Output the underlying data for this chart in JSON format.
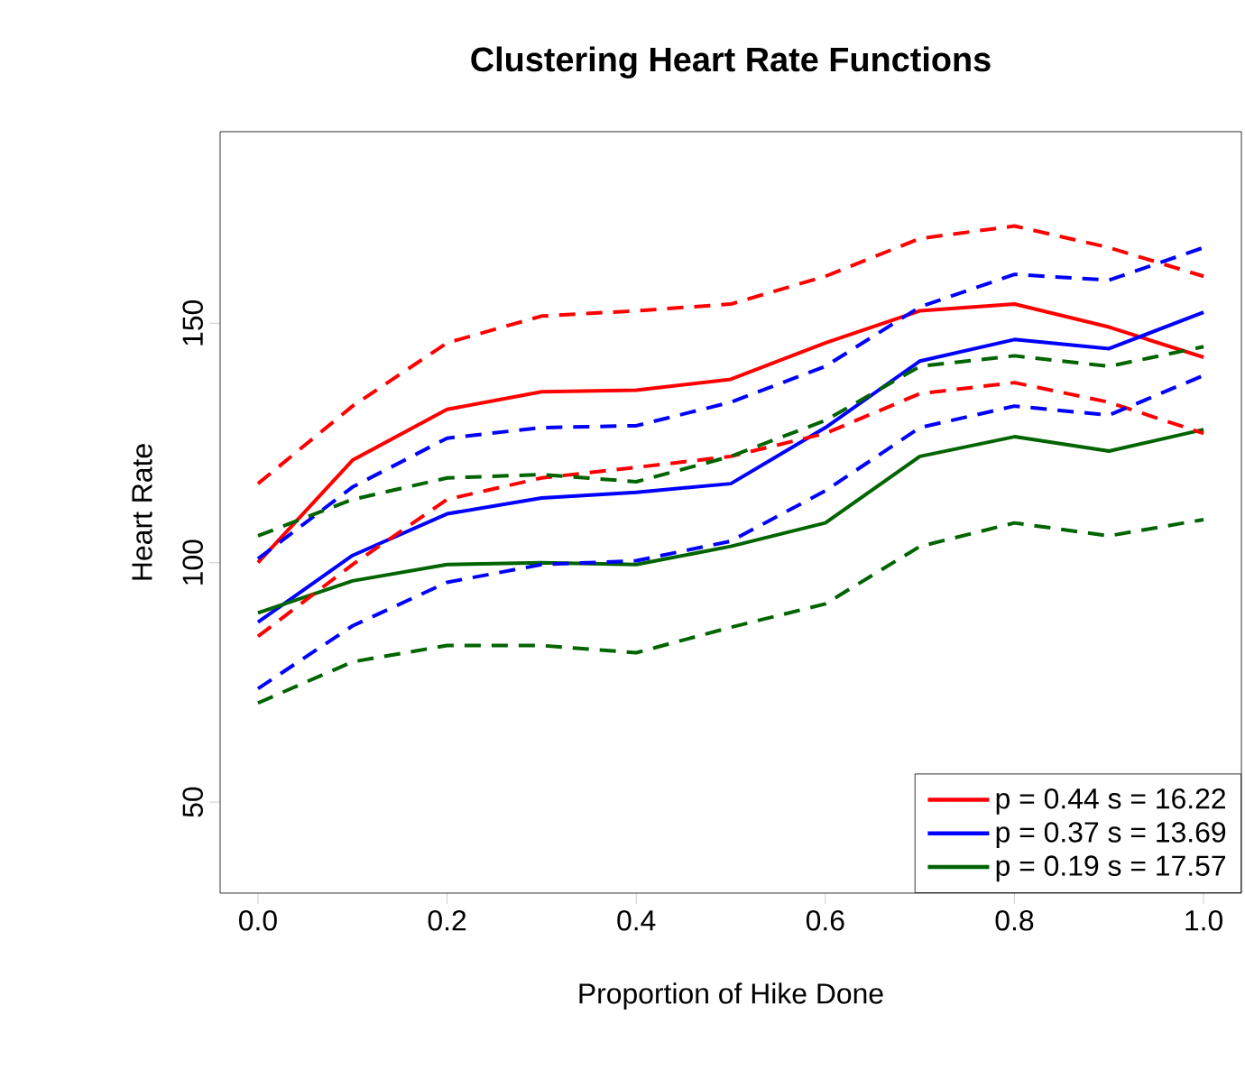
{
  "chart_data": {
    "type": "line",
    "title": "Clustering Heart Rate Functions",
    "xlabel": "Proportion of Hike Done",
    "ylabel": "Heart Rate",
    "x": [
      0,
      0.1,
      0.2,
      0.3,
      0.4,
      0.5,
      0.6,
      0.7,
      0.8,
      0.9,
      1.0
    ],
    "xlim": [
      -0.04,
      1.04
    ],
    "ylim": [
      31,
      190
    ],
    "xticks": [
      {
        "value": 0,
        "label": "0.0"
      },
      {
        "value": 0.2,
        "label": "0.2"
      },
      {
        "value": 0.4,
        "label": "0.4"
      },
      {
        "value": 0.6,
        "label": "0.6"
      },
      {
        "value": 0.8,
        "label": "0.8"
      },
      {
        "value": 1.0,
        "label": "1.0"
      }
    ],
    "yticks": [
      50,
      100,
      150
    ],
    "legend": "bottom right",
    "grid": false,
    "marker": "none",
    "series": [
      {
        "name": "p = 0.44 s = 16.22",
        "color": "#ff0000",
        "line_style": "solid",
        "values": [
          100,
          121.4,
          132,
          135.7,
          136,
          138.3,
          145.9,
          152.6,
          154,
          149.2,
          142.9
        ]
      },
      {
        "name": "p = 0.37 s = 13.69",
        "color": "#0000ff",
        "line_style": "solid",
        "values": [
          87.6,
          101.5,
          110.2,
          113.5,
          114.7,
          116.5,
          128.2,
          142.1,
          146.6,
          144.7,
          152.3
        ]
      },
      {
        "name": "p = 0.19 s = 17.57",
        "color": "#006400",
        "line_style": "solid",
        "values": [
          89.5,
          96.2,
          99.6,
          100,
          99.6,
          103.4,
          108.3,
          122.2,
          126.3,
          123.3,
          127.8
        ]
      },
      {
        "color": "#ff0000",
        "line_style": "dashed",
        "values": [
          116.5,
          132.7,
          145.9,
          151.5,
          152.6,
          154,
          159.8,
          167.7,
          170.3,
          165.8,
          159.8
        ]
      },
      {
        "color": "#ff0000",
        "line_style": "dashed",
        "values": [
          84.6,
          99.6,
          113.2,
          117.7,
          119.9,
          122.2,
          127,
          135.3,
          137.6,
          133.5,
          127
        ]
      },
      {
        "color": "#0000ff",
        "line_style": "dashed",
        "values": [
          100.8,
          115.8,
          126,
          128.2,
          128.6,
          133.5,
          141,
          153.4,
          160.2,
          159,
          165.8
        ]
      },
      {
        "color": "#0000ff",
        "line_style": "dashed",
        "values": [
          73.7,
          86.8,
          95.9,
          99.6,
          100.4,
          104.5,
          115,
          128.2,
          132.7,
          130.8,
          139.1
        ]
      },
      {
        "color": "#006400",
        "line_style": "dashed",
        "values": [
          105.6,
          113.2,
          117.7,
          118.4,
          116.9,
          122.2,
          129.7,
          141,
          143.2,
          141,
          145.1
        ]
      },
      {
        "color": "#006400",
        "line_style": "dashed",
        "values": [
          70.7,
          79.3,
          82.7,
          82.7,
          81.2,
          86.5,
          91.4,
          103.4,
          108.3,
          105.6,
          109
        ]
      }
    ]
  }
}
